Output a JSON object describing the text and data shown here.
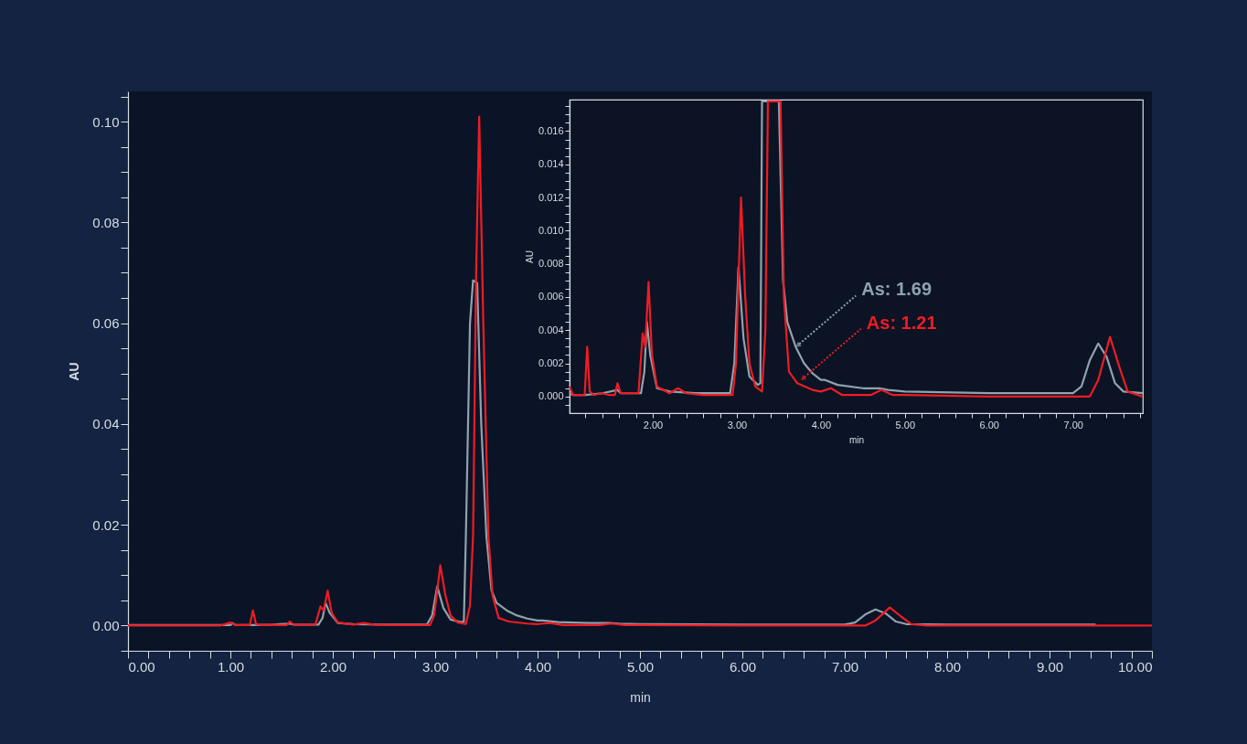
{
  "chart_data": [
    {
      "type": "line",
      "xlabel": "min",
      "ylabel": "AU",
      "xlim": [
        0,
        10
      ],
      "ylim": [
        -0.005,
        0.106
      ],
      "xticks": [
        {
          "value": 0,
          "label": "0.00"
        },
        {
          "value": 0.2,
          "label": null
        },
        {
          "value": 0.4,
          "label": null
        },
        {
          "value": 0.6,
          "label": null
        },
        {
          "value": 0.8,
          "label": null
        },
        {
          "value": 1,
          "label": "1.00"
        },
        {
          "value": 1.2,
          "label": null
        },
        {
          "value": 1.4,
          "label": null
        },
        {
          "value": 1.6,
          "label": null
        },
        {
          "value": 1.8,
          "label": null
        },
        {
          "value": 2,
          "label": "2.00"
        },
        {
          "value": 2.2,
          "label": null
        },
        {
          "value": 2.4,
          "label": null
        },
        {
          "value": 2.6,
          "label": null
        },
        {
          "value": 2.8,
          "label": null
        },
        {
          "value": 3,
          "label": "3.00"
        },
        {
          "value": 3.2,
          "label": null
        },
        {
          "value": 3.4,
          "label": null
        },
        {
          "value": 3.6,
          "label": null
        },
        {
          "value": 3.8,
          "label": null
        },
        {
          "value": 4,
          "label": "4.00"
        },
        {
          "value": 4.2,
          "label": null
        },
        {
          "value": 4.4,
          "label": null
        },
        {
          "value": 4.6,
          "label": null
        },
        {
          "value": 4.8,
          "label": null
        },
        {
          "value": 5,
          "label": "5.00"
        },
        {
          "value": 5.2,
          "label": null
        },
        {
          "value": 5.4,
          "label": null
        },
        {
          "value": 5.6,
          "label": null
        },
        {
          "value": 5.8,
          "label": null
        },
        {
          "value": 6,
          "label": "6.00"
        },
        {
          "value": 6.2,
          "label": null
        },
        {
          "value": 6.4,
          "label": null
        },
        {
          "value": 6.6,
          "label": null
        },
        {
          "value": 6.8,
          "label": null
        },
        {
          "value": 7,
          "label": "7.00"
        },
        {
          "value": 7.2,
          "label": null
        },
        {
          "value": 7.4,
          "label": null
        },
        {
          "value": 7.6,
          "label": null
        },
        {
          "value": 7.8,
          "label": null
        },
        {
          "value": 8,
          "label": "8.00"
        },
        {
          "value": 8.2,
          "label": null
        },
        {
          "value": 8.4,
          "label": null
        },
        {
          "value": 8.6,
          "label": null
        },
        {
          "value": 8.8,
          "label": null
        },
        {
          "value": 9,
          "label": "9.00"
        },
        {
          "value": 9.2,
          "label": null
        },
        {
          "value": 9.4,
          "label": null
        },
        {
          "value": 9.6,
          "label": null
        },
        {
          "value": 9.8,
          "label": null
        },
        {
          "value": 10,
          "label": "10.00"
        }
      ],
      "yticks": [
        {
          "value": -0.005,
          "label": null
        },
        {
          "value": 0,
          "label": "0.00"
        },
        {
          "value": 0.005,
          "label": null
        },
        {
          "value": 0.01,
          "label": null
        },
        {
          "value": 0.015,
          "label": null
        },
        {
          "value": 0.02,
          "label": "0.02"
        },
        {
          "value": 0.025,
          "label": null
        },
        {
          "value": 0.03,
          "label": null
        },
        {
          "value": 0.035,
          "label": null
        },
        {
          "value": 0.04,
          "label": "0.04"
        },
        {
          "value": 0.045,
          "label": null
        },
        {
          "value": 0.05,
          "label": null
        },
        {
          "value": 0.055,
          "label": null
        },
        {
          "value": 0.06,
          "label": "0.06"
        },
        {
          "value": 0.065,
          "label": null
        },
        {
          "value": 0.07,
          "label": null
        },
        {
          "value": 0.075,
          "label": null
        },
        {
          "value": 0.08,
          "label": "0.08"
        },
        {
          "value": 0.085,
          "label": null
        },
        {
          "value": 0.09,
          "label": null
        },
        {
          "value": 0.095,
          "label": null
        },
        {
          "value": 0.1,
          "label": "0.10"
        },
        {
          "value": 0.105,
          "label": null
        }
      ],
      "series": [
        {
          "color": "#8fa3ad",
          "x": [
            0,
            1.0,
            1.02,
            1.05,
            1.2,
            1.4,
            1.58,
            1.62,
            1.86,
            1.9,
            1.93,
            1.97,
            2.05,
            2.2,
            2.5,
            2.92,
            2.97,
            3.02,
            3.08,
            3.15,
            3.25,
            3.28,
            3.3,
            3.34,
            3.37,
            3.41,
            3.45,
            3.5,
            3.55,
            3.6,
            3.7,
            3.8,
            3.9,
            4.0,
            4.05,
            4.2,
            4.5,
            4.7,
            4.8,
            5.0,
            6.0,
            7.0,
            7.1,
            7.2,
            7.3,
            7.4,
            7.5,
            7.6,
            8.0,
            9.45
          ],
          "values": [
            0.0001,
            0.0001,
            0.0005,
            0.0001,
            0.0001,
            0.0002,
            0.0004,
            0.0002,
            0.0002,
            0.0015,
            0.0045,
            0.0025,
            0.0005,
            0.0003,
            0.0002,
            0.0002,
            0.002,
            0.0078,
            0.0035,
            0.0012,
            0.0007,
            0.0008,
            0.0178,
            0.06,
            0.0685,
            0.068,
            0.04,
            0.0178,
            0.007,
            0.0045,
            0.003,
            0.002,
            0.0014,
            0.001,
            0.001,
            0.0007,
            0.0005,
            0.0005,
            0.0004,
            0.0003,
            0.0002,
            0.0002,
            0.0006,
            0.0022,
            0.0032,
            0.0024,
            0.0008,
            0.0003,
            0.0002,
            0.0002
          ]
        },
        {
          "color": "#ee1c25",
          "x": [
            0,
            0.9,
            1.0,
            1.05,
            1.19,
            1.22,
            1.25,
            1.3,
            1.4,
            1.47,
            1.55,
            1.58,
            1.62,
            1.83,
            1.88,
            1.91,
            1.95,
            1.99,
            2.05,
            2.2,
            2.3,
            2.4,
            2.6,
            2.95,
            2.99,
            3.05,
            3.1,
            3.15,
            3.22,
            3.3,
            3.34,
            3.37,
            3.4,
            3.43,
            3.47,
            3.52,
            3.56,
            3.62,
            3.72,
            3.9,
            4.0,
            4.12,
            4.25,
            4.6,
            4.72,
            4.85,
            5.0,
            6.0,
            7.2,
            7.3,
            7.44,
            7.55,
            7.65,
            7.8,
            8.0,
            10.0
          ],
          "values": [
            0,
            0,
            0.0006,
            0.0001,
            0.0001,
            0.003,
            0.0003,
            0.0001,
            0.0002,
            0.0001,
            0.0001,
            0.0008,
            0.0002,
            0.0002,
            0.0038,
            0.003,
            0.0069,
            0.0025,
            0.0006,
            0.0002,
            0.0005,
            0.0002,
            0.0001,
            0.0001,
            0.002,
            0.012,
            0.006,
            0.002,
            0.0006,
            0.0003,
            0.004,
            0.0178,
            0.07,
            0.101,
            0.06,
            0.0178,
            0.006,
            0.0015,
            0.0008,
            0.0004,
            0.0003,
            0.0005,
            0.0001,
            0.0001,
            0.0004,
            0.0001,
            0.0001,
            0,
            0,
            0.001,
            0.0036,
            0.0018,
            0.0003,
            0,
            0,
            0
          ]
        }
      ]
    },
    {
      "type": "line",
      "xlabel": "min",
      "ylabel": "AU",
      "xlim": [
        1.01,
        7.83
      ],
      "ylim": [
        -0.001,
        0.0179
      ],
      "xticks": [
        {
          "value": 1.2,
          "label": null
        },
        {
          "value": 1.4,
          "label": null
        },
        {
          "value": 1.6,
          "label": null
        },
        {
          "value": 1.8,
          "label": null
        },
        {
          "value": 2,
          "label": "2.00"
        },
        {
          "value": 2.2,
          "label": null
        },
        {
          "value": 2.4,
          "label": null
        },
        {
          "value": 2.6,
          "label": null
        },
        {
          "value": 2.8,
          "label": null
        },
        {
          "value": 3,
          "label": "3.00"
        },
        {
          "value": 3.2,
          "label": null
        },
        {
          "value": 3.4,
          "label": null
        },
        {
          "value": 3.6,
          "label": null
        },
        {
          "value": 3.8,
          "label": null
        },
        {
          "value": 4,
          "label": "4.00"
        },
        {
          "value": 4.2,
          "label": null
        },
        {
          "value": 4.4,
          "label": null
        },
        {
          "value": 4.6,
          "label": null
        },
        {
          "value": 4.8,
          "label": null
        },
        {
          "value": 5,
          "label": "5.00"
        },
        {
          "value": 5.2,
          "label": null
        },
        {
          "value": 5.4,
          "label": null
        },
        {
          "value": 5.6,
          "label": null
        },
        {
          "value": 5.8,
          "label": null
        },
        {
          "value": 6,
          "label": "6.00"
        },
        {
          "value": 6.2,
          "label": null
        },
        {
          "value": 6.4,
          "label": null
        },
        {
          "value": 6.6,
          "label": null
        },
        {
          "value": 6.8,
          "label": null
        },
        {
          "value": 7,
          "label": "7.00"
        },
        {
          "value": 7.2,
          "label": null
        },
        {
          "value": 7.4,
          "label": null
        },
        {
          "value": 7.6,
          "label": null
        },
        {
          "value": 7.8,
          "label": null
        }
      ],
      "yticks": [
        {
          "value": -0.0005,
          "label": null
        },
        {
          "value": 0,
          "label": "0.000"
        },
        {
          "value": 0.0005,
          "label": null
        },
        {
          "value": 0.001,
          "label": null
        },
        {
          "value": 0.0015,
          "label": null
        },
        {
          "value": 0.002,
          "label": "0.002"
        },
        {
          "value": 0.0025,
          "label": null
        },
        {
          "value": 0.003,
          "label": null
        },
        {
          "value": 0.0035,
          "label": null
        },
        {
          "value": 0.004,
          "label": "0.004"
        },
        {
          "value": 0.0045,
          "label": null
        },
        {
          "value": 0.005,
          "label": null
        },
        {
          "value": 0.0055,
          "label": null
        },
        {
          "value": 0.006,
          "label": "0.006"
        },
        {
          "value": 0.0065,
          "label": null
        },
        {
          "value": 0.007,
          "label": null
        },
        {
          "value": 0.0075,
          "label": null
        },
        {
          "value": 0.008,
          "label": "0.008"
        },
        {
          "value": 0.0085,
          "label": null
        },
        {
          "value": 0.009,
          "label": null
        },
        {
          "value": 0.0095,
          "label": null
        },
        {
          "value": 0.01,
          "label": "0.010"
        },
        {
          "value": 0.0105,
          "label": null
        },
        {
          "value": 0.011,
          "label": null
        },
        {
          "value": 0.0115,
          "label": null
        },
        {
          "value": 0.012,
          "label": "0.012"
        },
        {
          "value": 0.0125,
          "label": null
        },
        {
          "value": 0.013,
          "label": null
        },
        {
          "value": 0.0135,
          "label": null
        },
        {
          "value": 0.014,
          "label": "0.014"
        },
        {
          "value": 0.0145,
          "label": null
        },
        {
          "value": 0.015,
          "label": null
        },
        {
          "value": 0.0155,
          "label": null
        },
        {
          "value": 0.016,
          "label": "0.016"
        },
        {
          "value": 0.0165,
          "label": null
        },
        {
          "value": 0.017,
          "label": null
        },
        {
          "value": 0.0175,
          "label": null
        }
      ],
      "series": [
        {
          "color": "#8fa3ad",
          "x": [
            1.01,
            1.05,
            1.2,
            1.4,
            1.58,
            1.62,
            1.86,
            1.9,
            1.93,
            1.97,
            2.05,
            2.2,
            2.5,
            2.92,
            2.97,
            3.02,
            3.08,
            3.15,
            3.25,
            3.28,
            3.3,
            3.5,
            3.55,
            3.6,
            3.7,
            3.8,
            3.9,
            4.0,
            4.05,
            4.2,
            4.5,
            4.7,
            4.8,
            5.0,
            6.0,
            7.0,
            7.1,
            7.2,
            7.3,
            7.4,
            7.5,
            7.6,
            7.83
          ],
          "values": [
            0.0002,
            0.0001,
            0.0001,
            0.0002,
            0.0004,
            0.0002,
            0.0002,
            0.0015,
            0.0045,
            0.0025,
            0.0005,
            0.0003,
            0.0002,
            0.0002,
            0.002,
            0.0078,
            0.0035,
            0.0012,
            0.0007,
            0.0008,
            0.0178,
            0.0178,
            0.007,
            0.0045,
            0.003,
            0.002,
            0.0014,
            0.001,
            0.001,
            0.0007,
            0.0005,
            0.0005,
            0.0004,
            0.0003,
            0.0002,
            0.0002,
            0.0006,
            0.0022,
            0.0032,
            0.0024,
            0.0008,
            0.0003,
            0.0002
          ]
        },
        {
          "color": "#ee1c25",
          "x": [
            1.01,
            1.05,
            1.19,
            1.22,
            1.25,
            1.3,
            1.4,
            1.47,
            1.55,
            1.58,
            1.62,
            1.83,
            1.88,
            1.91,
            1.95,
            1.99,
            2.05,
            2.2,
            2.3,
            2.4,
            2.6,
            2.95,
            2.99,
            3.05,
            3.1,
            3.15,
            3.22,
            3.3,
            3.34,
            3.37,
            3.52,
            3.56,
            3.62,
            3.72,
            3.9,
            4.0,
            4.12,
            4.25,
            4.6,
            4.72,
            4.85,
            5.0,
            6.0,
            7.2,
            7.3,
            7.44,
            7.55,
            7.65,
            7.83
          ],
          "values": [
            0.0006,
            0.0001,
            0.0001,
            0.003,
            0.0003,
            0.0001,
            0.0002,
            0.0001,
            0.0001,
            0.0008,
            0.0002,
            0.0002,
            0.0038,
            0.003,
            0.0069,
            0.0025,
            0.0006,
            0.0002,
            0.0005,
            0.0002,
            0.0001,
            0.0001,
            0.002,
            0.012,
            0.006,
            0.002,
            0.0006,
            0.0003,
            0.004,
            0.0178,
            0.0178,
            0.006,
            0.0015,
            0.0008,
            0.0004,
            0.0003,
            0.0005,
            0.0001,
            0.0001,
            0.0004,
            0.0001,
            0.0001,
            0,
            0,
            0.001,
            0.0036,
            0.0018,
            0.0003,
            0
          ]
        }
      ],
      "annotations": [
        {
          "text": "As: 1.69",
          "x": 3.7,
          "y": 0.003
        },
        {
          "text": "As: 1.21",
          "x": 3.76,
          "y": 0.001
        }
      ]
    }
  ]
}
